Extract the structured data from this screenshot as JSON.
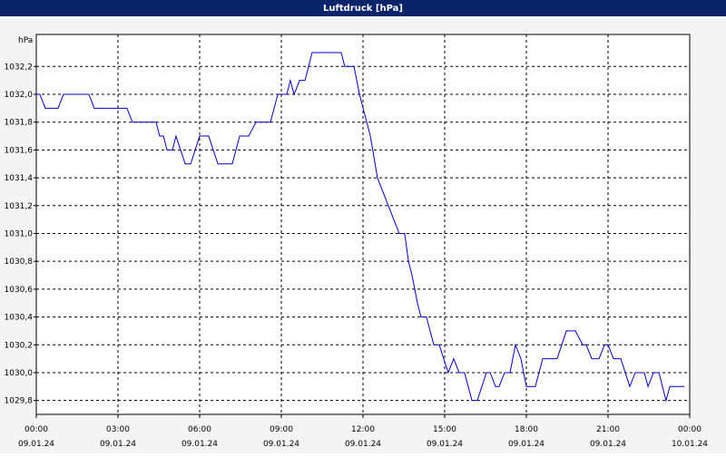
{
  "chart_data": {
    "type": "line",
    "title": "Luftdruck [hPa]",
    "y_label": "hPa",
    "xlim": [
      0,
      24
    ],
    "ylim": [
      1029.7,
      1032.43
    ],
    "xticks": [
      {
        "value": 0,
        "label": "00:00",
        "date": "09.01.24"
      },
      {
        "value": 3,
        "label": "03:00",
        "date": "09.01.24"
      },
      {
        "value": 6,
        "label": "06:00",
        "date": "09.01.24"
      },
      {
        "value": 9,
        "label": "09:00",
        "date": "09.01.24"
      },
      {
        "value": 12,
        "label": "12:00",
        "date": "09.01.24"
      },
      {
        "value": 15,
        "label": "15:00",
        "date": "09.01.24"
      },
      {
        "value": 18,
        "label": "18:00",
        "date": "09.01.24"
      },
      {
        "value": 21,
        "label": "21:00",
        "date": "09.01.24"
      },
      {
        "value": 24,
        "label": "00:00",
        "date": "10.01.24"
      }
    ],
    "yticks": [
      {
        "value": 1029.8,
        "label": "1029,8"
      },
      {
        "value": 1030.0,
        "label": "1030,0"
      },
      {
        "value": 1030.2,
        "label": "1030,2"
      },
      {
        "value": 1030.4,
        "label": "1030,4"
      },
      {
        "value": 1030.6,
        "label": "1030,6"
      },
      {
        "value": 1030.8,
        "label": "1030,8"
      },
      {
        "value": 1031.0,
        "label": "1031,0"
      },
      {
        "value": 1031.2,
        "label": "1031,2"
      },
      {
        "value": 1031.4,
        "label": "1031,4"
      },
      {
        "value": 1031.6,
        "label": "1031,6"
      },
      {
        "value": 1031.8,
        "label": "1031,8"
      },
      {
        "value": 1032.0,
        "label": "1032,0"
      },
      {
        "value": 1032.2,
        "label": "1032,2"
      }
    ],
    "grid": true,
    "series": [
      {
        "color": "#0000c0",
        "x": [
          0,
          0.13,
          0.33,
          0.8,
          1,
          1.93,
          2.13,
          3.33,
          3.53,
          4.4,
          4.53,
          4.67,
          4.8,
          5,
          5.13,
          5.47,
          5.67,
          6,
          6.33,
          6.67,
          7.2,
          7.47,
          7.8,
          8.07,
          8.6,
          8.87,
          9.2,
          9.33,
          9.47,
          9.67,
          9.87,
          10.13,
          11.2,
          11.33,
          11.67,
          11.87,
          12.27,
          12.53,
          13.33,
          13.53,
          13.67,
          13.8,
          14,
          14.13,
          14.33,
          14.6,
          14.8,
          15.13,
          15.33,
          15.53,
          15.73,
          16,
          16.2,
          16.53,
          16.67,
          16.87,
          17,
          17.2,
          17.4,
          17.6,
          17.8,
          18,
          18.33,
          18.6,
          19.13,
          19.47,
          19.8,
          20.07,
          20.2,
          20.4,
          20.67,
          20.87,
          21,
          21.2,
          21.47,
          21.8,
          22,
          22.33,
          22.47,
          22.67,
          22.87,
          23.13,
          23.27,
          23.8
        ],
        "values": [
          1032.0,
          1032.0,
          1031.9,
          1031.9,
          1032.0,
          1032.0,
          1031.9,
          1031.9,
          1031.8,
          1031.8,
          1031.7,
          1031.7,
          1031.6,
          1031.6,
          1031.7,
          1031.5,
          1031.5,
          1031.7,
          1031.7,
          1031.5,
          1031.5,
          1031.7,
          1031.7,
          1031.8,
          1031.8,
          1032.0,
          1032.0,
          1032.1,
          1032.0,
          1032.1,
          1032.1,
          1032.3,
          1032.3,
          1032.2,
          1032.2,
          1032.0,
          1031.7,
          1031.4,
          1031.0,
          1031.0,
          1030.8,
          1030.7,
          1030.5,
          1030.4,
          1030.4,
          1030.2,
          1030.2,
          1030.0,
          1030.1,
          1030.0,
          1030.0,
          1029.8,
          1029.8,
          1030.0,
          1030.0,
          1029.9,
          1029.9,
          1030.0,
          1030.0,
          1030.2,
          1030.1,
          1029.9,
          1029.9,
          1030.1,
          1030.1,
          1030.3,
          1030.3,
          1030.2,
          1030.2,
          1030.1,
          1030.1,
          1030.2,
          1030.2,
          1030.1,
          1030.1,
          1029.9,
          1030.0,
          1030.0,
          1029.9,
          1030.0,
          1030.0,
          1029.8,
          1029.9,
          1029.9
        ]
      }
    ]
  }
}
